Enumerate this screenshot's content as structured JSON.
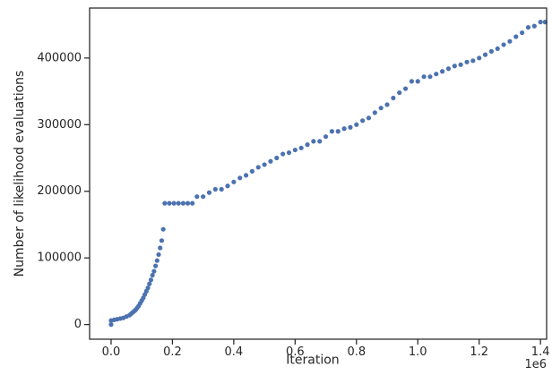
{
  "chart_data": {
    "type": "scatter",
    "title": "",
    "xlabel": "Iteration",
    "ylabel": "Number of likelihood evaluations",
    "x_offset_label": "1e6",
    "xlim": [
      -0.07,
      1.42
    ],
    "ylim": [
      -22000,
      475000
    ],
    "x_ticks": [
      0.0,
      0.2,
      0.4,
      0.6,
      0.8,
      1.0,
      1.2,
      1.4
    ],
    "x_tick_labels": [
      "0.0",
      "0.2",
      "0.4",
      "0.6",
      "0.8",
      "1.0",
      "1.2",
      "1.4"
    ],
    "y_ticks": [
      0,
      100000,
      200000,
      300000,
      400000
    ],
    "y_tick_labels": [
      "0",
      "100000",
      "200000",
      "300000",
      "400000"
    ],
    "grid": false,
    "legend": "none",
    "marker_color": "#4c72b0",
    "series": [
      {
        "points": [
          [
            0.0,
            0
          ],
          [
            0.0,
            6000
          ],
          [
            0.01,
            7000
          ],
          [
            0.02,
            8000
          ],
          [
            0.03,
            9000
          ],
          [
            0.04,
            10000
          ],
          [
            0.05,
            12000
          ],
          [
            0.06,
            14000
          ],
          [
            0.065,
            16000
          ],
          [
            0.07,
            18000
          ],
          [
            0.075,
            20000
          ],
          [
            0.08,
            22000
          ],
          [
            0.085,
            25000
          ],
          [
            0.09,
            28000
          ],
          [
            0.095,
            32000
          ],
          [
            0.1,
            36000
          ],
          [
            0.105,
            40000
          ],
          [
            0.11,
            45000
          ],
          [
            0.115,
            50000
          ],
          [
            0.12,
            55000
          ],
          [
            0.125,
            61000
          ],
          [
            0.13,
            67000
          ],
          [
            0.135,
            74000
          ],
          [
            0.14,
            80000
          ],
          [
            0.145,
            88000
          ],
          [
            0.15,
            96000
          ],
          [
            0.155,
            105000
          ],
          [
            0.16,
            115000
          ],
          [
            0.165,
            126000
          ],
          [
            0.17,
            143000
          ],
          [
            0.175,
            182000
          ],
          [
            0.19,
            182000
          ],
          [
            0.205,
            182000
          ],
          [
            0.22,
            182000
          ],
          [
            0.235,
            182000
          ],
          [
            0.25,
            182000
          ],
          [
            0.265,
            182000
          ],
          [
            0.28,
            192000
          ],
          [
            0.3,
            192000
          ],
          [
            0.32,
            198000
          ],
          [
            0.34,
            203000
          ],
          [
            0.36,
            203000
          ],
          [
            0.38,
            208000
          ],
          [
            0.4,
            214000
          ],
          [
            0.42,
            220000
          ],
          [
            0.44,
            224000
          ],
          [
            0.46,
            230000
          ],
          [
            0.48,
            236000
          ],
          [
            0.5,
            240000
          ],
          [
            0.52,
            245000
          ],
          [
            0.54,
            250000
          ],
          [
            0.56,
            256000
          ],
          [
            0.58,
            258000
          ],
          [
            0.6,
            262000
          ],
          [
            0.62,
            265000
          ],
          [
            0.64,
            270000
          ],
          [
            0.66,
            275000
          ],
          [
            0.68,
            275000
          ],
          [
            0.7,
            282000
          ],
          [
            0.72,
            290000
          ],
          [
            0.74,
            290000
          ],
          [
            0.76,
            294000
          ],
          [
            0.78,
            296000
          ],
          [
            0.8,
            300000
          ],
          [
            0.82,
            306000
          ],
          [
            0.84,
            310000
          ],
          [
            0.86,
            318000
          ],
          [
            0.88,
            325000
          ],
          [
            0.9,
            330000
          ],
          [
            0.92,
            340000
          ],
          [
            0.94,
            348000
          ],
          [
            0.96,
            354000
          ],
          [
            0.98,
            365000
          ],
          [
            1.0,
            365000
          ],
          [
            1.02,
            372000
          ],
          [
            1.04,
            372000
          ],
          [
            1.06,
            376000
          ],
          [
            1.08,
            380000
          ],
          [
            1.1,
            384000
          ],
          [
            1.12,
            388000
          ],
          [
            1.14,
            390000
          ],
          [
            1.16,
            394000
          ],
          [
            1.18,
            396000
          ],
          [
            1.2,
            400000
          ],
          [
            1.22,
            405000
          ],
          [
            1.24,
            410000
          ],
          [
            1.26,
            414000
          ],
          [
            1.28,
            420000
          ],
          [
            1.3,
            425000
          ],
          [
            1.32,
            432000
          ],
          [
            1.34,
            438000
          ],
          [
            1.36,
            446000
          ],
          [
            1.38,
            448000
          ],
          [
            1.4,
            454000
          ],
          [
            1.415,
            454000
          ]
        ]
      }
    ]
  }
}
